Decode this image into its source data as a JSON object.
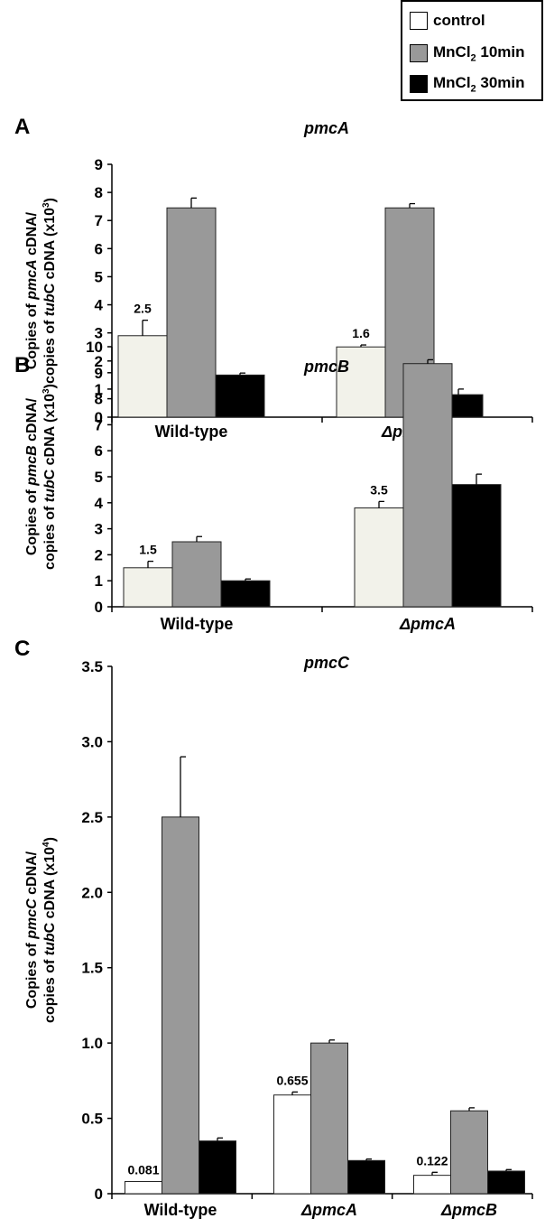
{
  "colors": {
    "control": "#f2f2ea",
    "control_c": "#ffffff",
    "mn10": "#999999",
    "mn30": "#000000"
  },
  "legend": {
    "items": [
      {
        "key": "control",
        "label": "control",
        "color": "#ffffff"
      },
      {
        "key": "mn10",
        "label_pre": "MnCl",
        "label_sub": "2",
        "label_post": " 10min",
        "color": "#999999"
      },
      {
        "key": "mn30",
        "label_pre": "MnCl",
        "label_sub": "2",
        "label_post": " 30min",
        "color": "#000000"
      }
    ]
  },
  "chart_data": [
    {
      "panel": "A",
      "title": "pmcA",
      "type": "bar",
      "ylabel_line1": [
        "Copies of ",
        "pmcA",
        " cDNA/"
      ],
      "ylabel_line2": [
        "copies of ",
        "tub",
        "C cDNA (x10",
        "3",
        ")"
      ],
      "ylim": [
        0,
        9
      ],
      "yticks": [
        "0",
        "1",
        "2",
        "3",
        "4",
        "5",
        "6",
        "7",
        "8",
        "9"
      ],
      "categories": [
        "Wild-type",
        "ΔpmcB"
      ],
      "category_italic": [
        false,
        true
      ],
      "series": [
        {
          "name": "control",
          "values": [
            2.9,
            2.5
          ],
          "errors": [
            0.55,
            0.07
          ]
        },
        {
          "name": "MnCl2 10min",
          "values": [
            7.45,
            7.45
          ],
          "errors": [
            0.35,
            0.15
          ]
        },
        {
          "name": "MnCl2 30min",
          "values": [
            1.5,
            0.8
          ],
          "errors": [
            0.07,
            0.2
          ]
        }
      ],
      "annotations": [
        "2.5",
        "1.6"
      ]
    },
    {
      "panel": "B",
      "title": "pmcB",
      "type": "bar",
      "ylabel_line1": [
        "Copies of ",
        "pmcB",
        " cDNA/"
      ],
      "ylabel_line2": [
        "copies of ",
        "tub",
        "C cDNA (x10",
        "3",
        ")"
      ],
      "ylim": [
        0,
        10
      ],
      "yticks": [
        "0",
        "1",
        "2",
        "3",
        "4",
        "5",
        "6",
        "7",
        "8",
        "9",
        "10"
      ],
      "categories": [
        "Wild-type",
        "ΔpmcA"
      ],
      "category_italic": [
        false,
        true
      ],
      "series": [
        {
          "name": "control",
          "values": [
            1.5,
            3.8
          ],
          "errors": [
            0.25,
            0.25
          ]
        },
        {
          "name": "MnCl2 10min",
          "values": [
            2.5,
            9.35
          ],
          "errors": [
            0.2,
            0.15
          ]
        },
        {
          "name": "MnCl2 30min",
          "values": [
            1.0,
            4.7
          ],
          "errors": [
            0.07,
            0.4
          ]
        }
      ],
      "annotations": [
        "1.5",
        "3.5"
      ]
    },
    {
      "panel": "C",
      "title": "pmcC",
      "type": "bar",
      "ylabel_line1": [
        "Copies of ",
        "pmcC",
        " cDNA/"
      ],
      "ylabel_line2": [
        "copies of ",
        "tub",
        "C cDNA (x10",
        "4",
        ")"
      ],
      "ylim": [
        0,
        3.5
      ],
      "yticks": [
        "0",
        "0.5",
        "1.0",
        "1.5",
        "2.0",
        "2.5",
        "3.0",
        "3.5"
      ],
      "categories": [
        "Wild-type",
        "ΔpmcA",
        "ΔpmcB"
      ],
      "category_italic": [
        false,
        true,
        true
      ],
      "series": [
        {
          "name": "control",
          "values": [
            0.081,
            0.655,
            0.122
          ],
          "errors": [
            0.0,
            0.02,
            0.02
          ]
        },
        {
          "name": "MnCl2 10min",
          "values": [
            2.5,
            1.0,
            0.55
          ],
          "errors": [
            0.4,
            0.02,
            0.02
          ]
        },
        {
          "name": "MnCl2 30min",
          "values": [
            0.35,
            0.22,
            0.15
          ],
          "errors": [
            0.02,
            0.01,
            0.01
          ]
        }
      ],
      "annotations": [
        "0.081",
        "0.655",
        "0.122"
      ]
    }
  ]
}
